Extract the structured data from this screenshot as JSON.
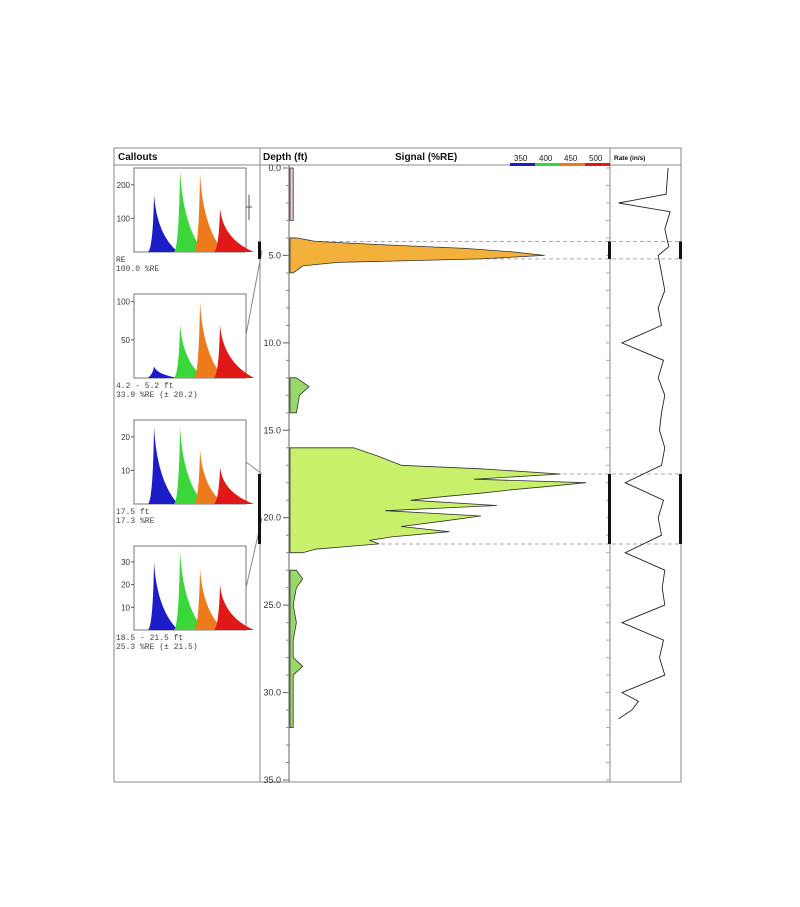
{
  "panels": {
    "callouts_header": "Callouts",
    "depth_header": "Depth (ft)",
    "signal_header": "Signal (%RE)",
    "rate_header": "Rate (in/s)"
  },
  "colors": {
    "blue": "#1c1cc8",
    "green": "#3ad63a",
    "orange": "#ee7a1e",
    "red": "#e01818",
    "fill_orange": "#f3b13c",
    "fill_lime": "#c8f06a",
    "fill_green": "#9ad86a"
  },
  "chart_data": [
    {
      "type": "area",
      "name": "signal-log",
      "y_axis": {
        "label": "Depth (ft)",
        "range": [
          0,
          35
        ],
        "inverted": true,
        "ticks": [
          0.0,
          5.0,
          10.0,
          15.0,
          20.0,
          25.0,
          30.0,
          35.0
        ],
        "tick_labels": [
          "0.0",
          "5.0",
          "10.0",
          "15.0",
          "20.0",
          "25.0",
          "30.0",
          "35.0"
        ]
      },
      "x_axis": {
        "label": "Signal (%RE)",
        "range": [
          0,
          100
        ]
      },
      "legend": {
        "position": "top-right",
        "entries": [
          {
            "label": "350",
            "color": "#1c1cc8"
          },
          {
            "label": "400",
            "color": "#3ad63a"
          },
          {
            "label": "450",
            "color": "#ee7a1e"
          },
          {
            "label": "500",
            "color": "#e01818"
          }
        ]
      },
      "highlight_ranges": [
        [
          4.2,
          5.2
        ],
        [
          17.5,
          21.5
        ]
      ],
      "depth": [
        0,
        1,
        2,
        3,
        4,
        4.2,
        4.4,
        4.6,
        4.8,
        5.0,
        5.2,
        5.4,
        5.6,
        6,
        8,
        9.5,
        10,
        12,
        12.5,
        13,
        14,
        15,
        16,
        16.5,
        17,
        17.2,
        17.5,
        17.8,
        18.0,
        18.2,
        18.4,
        18.6,
        18.8,
        19.0,
        19.3,
        19.6,
        19.9,
        20.2,
        20.5,
        20.8,
        21.1,
        21.3,
        21.5,
        21.8,
        22,
        23,
        23.5,
        24,
        25,
        26,
        27,
        28,
        28.5,
        29,
        30,
        31,
        32
      ],
      "signal": [
        1,
        1,
        1,
        1,
        2,
        8,
        30,
        55,
        70,
        80,
        60,
        15,
        4,
        1,
        1,
        2,
        2,
        2,
        6,
        3,
        2,
        2,
        20,
        28,
        35,
        60,
        85,
        58,
        93,
        82,
        70,
        60,
        48,
        38,
        65,
        30,
        60,
        48,
        35,
        50,
        32,
        25,
        28,
        8,
        4,
        2,
        4,
        2,
        1,
        2,
        1,
        1,
        4,
        1,
        1,
        1,
        1
      ]
    },
    {
      "type": "line",
      "name": "rate-log",
      "y_axis": {
        "range": [
          0,
          35
        ],
        "inverted": true
      },
      "x_axis": {
        "label": "Rate (in/s)",
        "range": [
          0,
          100
        ]
      },
      "depth": [
        0,
        1.5,
        2,
        2.5,
        3.5,
        4.5,
        5,
        6,
        7,
        8,
        9,
        10,
        11,
        12,
        13,
        14,
        15,
        16,
        17,
        18,
        19,
        20,
        21,
        22,
        23,
        24,
        25,
        26,
        27,
        28,
        29,
        30,
        30.5,
        31,
        31.5
      ],
      "rate": [
        85,
        82,
        10,
        88,
        80,
        86,
        70,
        75,
        80,
        70,
        75,
        15,
        78,
        70,
        80,
        75,
        72,
        80,
        75,
        20,
        78,
        70,
        75,
        20,
        80,
        76,
        80,
        15,
        78,
        72,
        80,
        15,
        40,
        30,
        10
      ]
    },
    {
      "type": "area",
      "name": "callout-1",
      "series_colors": [
        "#1c1cc8",
        "#3ad63a",
        "#ee7a1e",
        "#e01818"
      ],
      "y_range": [
        0,
        250
      ],
      "yticks": [
        100,
        200
      ],
      "peaks": [
        170,
        245,
        235,
        130
      ],
      "lines": [
        "RE",
        "100.0 %RE"
      ]
    },
    {
      "type": "area",
      "name": "callout-2",
      "series_colors": [
        "#1c1cc8",
        "#3ad63a",
        "#ee7a1e",
        "#e01818"
      ],
      "y_range": [
        0,
        110
      ],
      "yticks": [
        50,
        100
      ],
      "peaks": [
        15,
        70,
        100,
        70
      ],
      "lines": [
        "4.2 - 5.2 ft",
        "33.9 %RE (± 20.2)"
      ]
    },
    {
      "type": "area",
      "name": "callout-3",
      "series_colors": [
        "#1c1cc8",
        "#3ad63a",
        "#ee7a1e",
        "#e01818"
      ],
      "y_range": [
        0,
        25
      ],
      "yticks": [
        10,
        20
      ],
      "peaks": [
        23,
        23,
        16,
        11
      ],
      "lines": [
        "17.5 ft",
        "17.3 %RE"
      ]
    },
    {
      "type": "area",
      "name": "callout-4",
      "series_colors": [
        "#1c1cc8",
        "#3ad63a",
        "#ee7a1e",
        "#e01818"
      ],
      "y_range": [
        0,
        37
      ],
      "yticks": [
        10,
        20,
        30
      ],
      "peaks": [
        30,
        35,
        27,
        20
      ],
      "lines": [
        "18.5 - 21.5 ft",
        "25.3 %RE (± 21.5)"
      ]
    }
  ]
}
